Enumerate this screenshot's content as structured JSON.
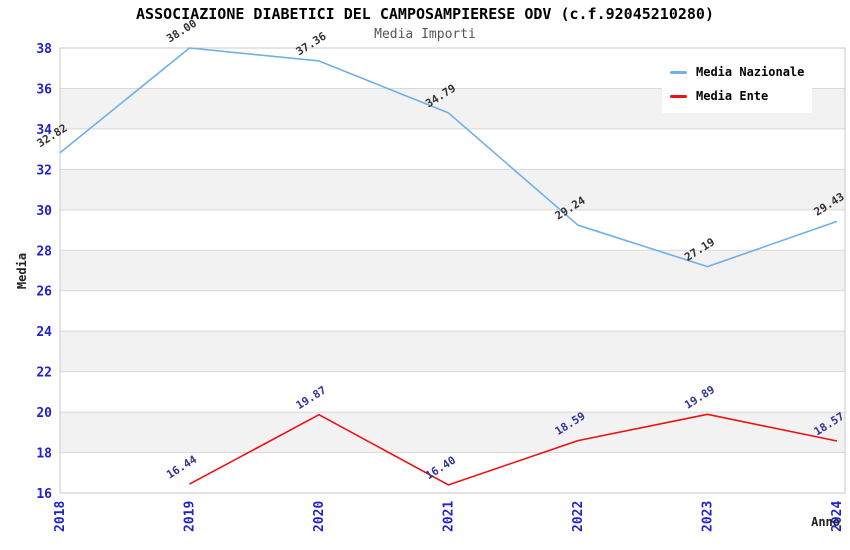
{
  "chart_data": {
    "type": "line",
    "title": "ASSOCIAZIONE DIABETICI DEL CAMPOSAMPIERESE ODV (c.f.92045210280)",
    "subtitle": "Media Importi",
    "x_axis": {
      "title": "Anno",
      "categories": [
        "2018",
        "2019",
        "2020",
        "2021",
        "2022",
        "2023",
        "2024"
      ]
    },
    "y_axis": {
      "title": "Media",
      "min": 16,
      "max": 38,
      "tick_step": 2,
      "tick_labels": [
        "16",
        "18",
        "20",
        "22",
        "24",
        "26",
        "28",
        "30",
        "32",
        "34",
        "36",
        "38"
      ]
    },
    "grid": true,
    "legend_position": "top-right",
    "series": [
      {
        "name": "Media Nazionale",
        "color": "#6fb0e8",
        "label_color": "#333333",
        "points": [
          {
            "category": "2018",
            "value": 32.82,
            "label": "32.82"
          },
          {
            "category": "2019",
            "value": 38.0,
            "label": "38.00"
          },
          {
            "category": "2020",
            "value": 37.36,
            "label": "37.36"
          },
          {
            "category": "2021",
            "value": 34.79,
            "label": "34.79"
          },
          {
            "category": "2022",
            "value": 29.24,
            "label": "29.24"
          },
          {
            "category": "2023",
            "value": 27.19,
            "label": "27.19"
          },
          {
            "category": "2024",
            "value": 29.43,
            "label": "29.43"
          }
        ]
      },
      {
        "name": "Media Ente",
        "color": "#ee1111",
        "label_color": "#333399",
        "points": [
          {
            "category": "2019",
            "value": 16.44,
            "label": "16.44"
          },
          {
            "category": "2020",
            "value": 19.87,
            "label": "19.87"
          },
          {
            "category": "2021",
            "value": 16.4,
            "label": "16.40"
          },
          {
            "category": "2022",
            "value": 18.59,
            "label": "18.59"
          },
          {
            "category": "2023",
            "value": 19.89,
            "label": "19.89"
          },
          {
            "category": "2024",
            "value": 18.57,
            "label": "18.57"
          }
        ]
      }
    ],
    "style": {
      "tick_label_color": "#2222cc",
      "grid_color": "#d9d9d9",
      "band_color": "#f2f2f2",
      "border_color": "#c9c9c9",
      "background": "#ffffff",
      "title_color": "#000000",
      "subtitle_color": "#555555",
      "axis_title_color": "#222222"
    }
  }
}
